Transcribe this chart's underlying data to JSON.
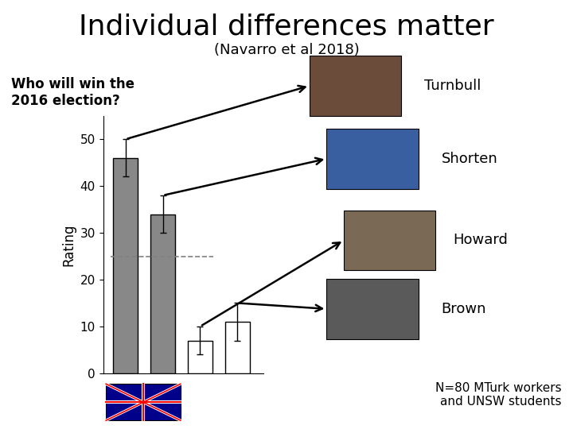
{
  "title": "Individual differences matter",
  "subtitle": "(Navarro et al 2018)",
  "question": "Who will win the\n2016 election?",
  "ylabel": "Rating",
  "ylim": [
    0,
    55
  ],
  "yticks": [
    0,
    10,
    20,
    30,
    40,
    50
  ],
  "bars": [
    {
      "label": "Turnbull",
      "value": 46,
      "error": 4,
      "color": "#888888"
    },
    {
      "label": "Shorten",
      "value": 34,
      "error": 4,
      "color": "#888888"
    },
    {
      "label": "Howard",
      "value": 7,
      "error": 3,
      "color": "#ffffff"
    },
    {
      "label": "Brown",
      "value": 11,
      "error": 4,
      "color": "#ffffff"
    }
  ],
  "dashed_line_y": 25,
  "bg_color": "#ffffff",
  "note": "N=80 MTurk workers\nand UNSW students",
  "bar_positions": [
    1,
    2,
    3,
    4
  ],
  "bar_width": 0.65,
  "title_fontsize": 26,
  "subtitle_fontsize": 13,
  "question_fontsize": 12,
  "ylabel_fontsize": 12,
  "ytick_fontsize": 11,
  "note_fontsize": 11,
  "photo_colors": {
    "Turnbull": "#6b4c3b",
    "Shorten": "#3a5fa0",
    "Howard": "#7a6a55",
    "Brown": "#5a5a5a"
  },
  "flag_color": "#00008b"
}
